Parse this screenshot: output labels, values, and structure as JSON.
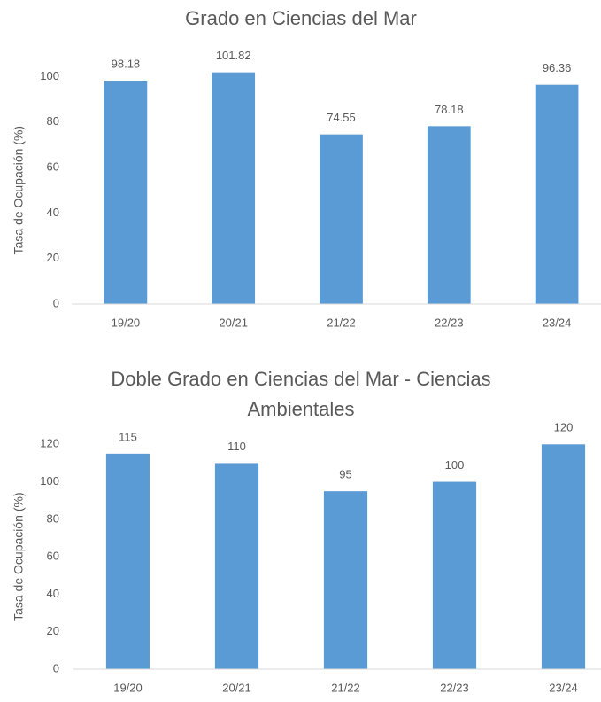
{
  "chart_data": [
    {
      "type": "bar",
      "title": "Grado en  Ciencias del Mar",
      "y_label": "Tasa de Ocupación (%)",
      "categories": [
        "19/20",
        "20/21",
        "21/22",
        "22/23",
        "23/24"
      ],
      "values": [
        98.18,
        101.82,
        74.55,
        78.18,
        96.36
      ],
      "color": "#5b9bd5",
      "ylim": [
        0,
        120
      ],
      "yticks": [
        0,
        20,
        40,
        60,
        80,
        100
      ],
      "grid": false
    },
    {
      "type": "bar",
      "title": "Doble Grado en Ciencias del Mar - Ciencias Ambientales",
      "y_label": "Tasa de Ocupación (%)",
      "categories": [
        "19/20",
        "20/21",
        "21/22",
        "22/23",
        "23/24"
      ],
      "values": [
        115,
        110,
        95,
        100,
        120
      ],
      "color": "#5b9bd5",
      "ylim": [
        0,
        140
      ],
      "yticks": [
        0,
        20,
        40,
        60,
        80,
        100,
        120
      ],
      "grid": false
    }
  ]
}
